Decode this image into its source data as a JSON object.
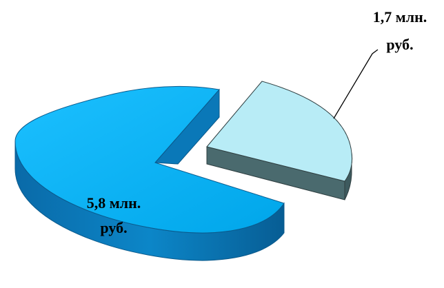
{
  "chart_data": {
    "type": "pie",
    "style": "3d-exploded",
    "title": "",
    "slices": [
      {
        "label_line1": "5,8 млн.",
        "label_line2": "руб.",
        "value": 5.8,
        "color": "#10b0f0",
        "side_color": "#0a78b8",
        "edge_color": "#0b5a8c"
      },
      {
        "label_line1": "1,7 млн.",
        "label_line2": "руб.",
        "value": 1.7,
        "color": "#b8ecf6",
        "side_color": "#4a6a6e",
        "edge_color": "#2e3e40"
      }
    ],
    "legend": "none",
    "grid": false
  }
}
